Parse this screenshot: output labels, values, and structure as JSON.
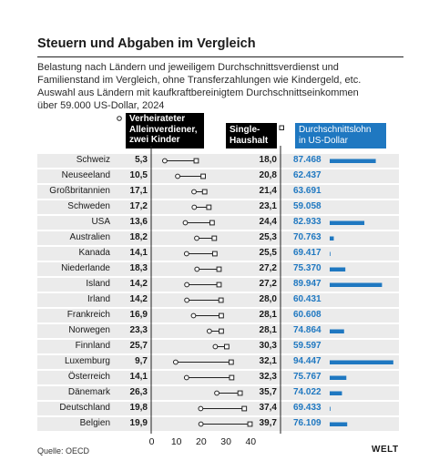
{
  "title": "Steuern und Abgaben im Vergleich",
  "subtitle_lines": [
    "Belastung nach Ländern und jeweiligem Durchschnittsverdienst und",
    "Familienstand im Vergleich, ohne Transferzahlungen wie Kindergeld, etc.",
    "Auswahl aus Ländern mit kaufkraftbereinigtem Durchschnittseinkommen",
    "über 59.000 US-Dollar, 2024"
  ],
  "headers": {
    "married_lines": [
      "Verheirateter",
      "Alleinverdiener,",
      "zwei Kinder"
    ],
    "single_lines": [
      "Single-",
      "Haushalt"
    ],
    "wage_lines": [
      "Durchschnittslohn",
      "in US-Dollar"
    ]
  },
  "source": "Quelle: OECD",
  "logo": "WELT",
  "colors": {
    "accent": "#1f78c1",
    "row_bg": "#ebebeb",
    "header_bg": "#000000"
  },
  "chart_data": {
    "type": "dumbbell",
    "title": "Steuern und Abgaben im Vergleich",
    "xlim": [
      0,
      40
    ],
    "xticks": [
      "0",
      "10",
      "20",
      "30",
      "40"
    ],
    "series": [
      {
        "name": "Verheirateter Alleinverdiener, zwei Kinder",
        "marker": "circle"
      },
      {
        "name": "Single-Haushalt",
        "marker": "square"
      },
      {
        "name": "Durchschnittslohn in US-Dollar",
        "marker": "bar"
      }
    ],
    "rows": [
      {
        "country": "Schweiz",
        "married": "5,3",
        "single": "18,0",
        "wage": "87.468"
      },
      {
        "country": "Neuseeland",
        "married": "10,5",
        "single": "20,8",
        "wage": "62.437"
      },
      {
        "country": "Großbritannien",
        "married": "17,1",
        "single": "21,4",
        "wage": "63.691"
      },
      {
        "country": "Schweden",
        "married": "17,2",
        "single": "23,1",
        "wage": "59.058"
      },
      {
        "country": "USA",
        "married": "13,6",
        "single": "24,4",
        "wage": "82.933"
      },
      {
        "country": "Australien",
        "married": "18,2",
        "single": "25,3",
        "wage": "70.763"
      },
      {
        "country": "Kanada",
        "married": "14,1",
        "single": "25,5",
        "wage": "69.417"
      },
      {
        "country": "Niederlande",
        "married": "18,3",
        "single": "27,2",
        "wage": "75.370"
      },
      {
        "country": "Island",
        "married": "14,2",
        "single": "27,2",
        "wage": "89.947"
      },
      {
        "country": "Irland",
        "married": "14,2",
        "single": "28,0",
        "wage": "60.431"
      },
      {
        "country": "Frankreich",
        "married": "16,9",
        "single": "28,1",
        "wage": "60.608"
      },
      {
        "country": "Norwegen",
        "married": "23,3",
        "single": "28,1",
        "wage": "74.864"
      },
      {
        "country": "Finnland",
        "married": "25,7",
        "single": "30,3",
        "wage": "59.597"
      },
      {
        "country": "Luxemburg",
        "married": "9,7",
        "single": "32,1",
        "wage": "94.447"
      },
      {
        "country": "Österreich",
        "married": "14,1",
        "single": "32,3",
        "wage": "75.767"
      },
      {
        "country": "Dänemark",
        "married": "26,3",
        "single": "35,7",
        "wage": "74.022"
      },
      {
        "country": "Deutschland",
        "married": "19,8",
        "single": "37,4",
        "wage": "69.433"
      },
      {
        "country": "Belgien",
        "married": "19,9",
        "single": "39,7",
        "wage": "76.109"
      }
    ]
  }
}
